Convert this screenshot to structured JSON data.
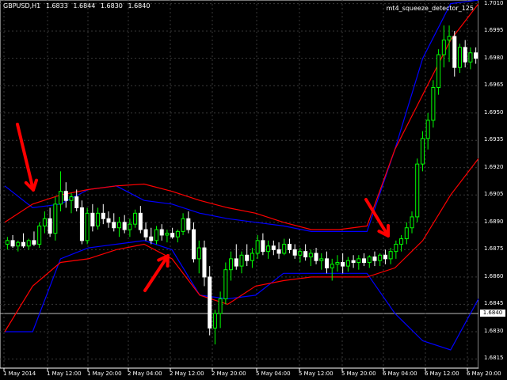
{
  "header": {
    "symbol": "GBPUSD,H1",
    "open": "1.6833",
    "high": "1.6844",
    "low": "1.6830",
    "close": "1.6840"
  },
  "indicator": {
    "name": "mt4_squeeze_detector_125"
  },
  "price_axis": [
    "1.7010",
    "1.6995",
    "1.6980",
    "1.6965",
    "1.6950",
    "1.6935",
    "1.6920",
    "1.6905",
    "1.6890",
    "1.6875",
    "1.6860",
    "1.6845",
    "1.6830",
    "1.6815"
  ],
  "current_price": "1.6840",
  "time_axis": [
    "1 May 2014",
    "1 May 12:00",
    "1 May 20:00",
    "2 May 04:00",
    "2 May 12:00",
    "2 May 20:00",
    "5 May 04:00",
    "5 May 12:00",
    "5 May 20:00",
    "6 May 04:00",
    "6 May 12:00",
    "6 May 20:00"
  ],
  "colors": {
    "background": "#000000",
    "grid": "#3a3a3a",
    "bull": "#00ff00",
    "bear": "#ffffff",
    "bollinger": "#ff0000",
    "keltner": "#0000ff",
    "arrow": "#ff0000"
  },
  "chart_data": {
    "type": "candlestick",
    "symbol": "GBPUSD",
    "timeframe": "H1",
    "ylim": [
      1.681,
      1.7012
    ],
    "candles": [
      [
        1.6878,
        1.6882,
        1.6875,
        1.688
      ],
      [
        1.688,
        1.6883,
        1.6876,
        1.6877
      ],
      [
        1.6877,
        1.688,
        1.6874,
        1.6879
      ],
      [
        1.6879,
        1.6884,
        1.6876,
        1.6877
      ],
      [
        1.6877,
        1.6881,
        1.6875,
        1.688
      ],
      [
        1.688,
        1.6885,
        1.6877,
        1.6878
      ],
      [
        1.6878,
        1.689,
        1.6876,
        1.6888
      ],
      [
        1.6888,
        1.6896,
        1.6884,
        1.6892
      ],
      [
        1.6892,
        1.6898,
        1.6882,
        1.6884
      ],
      [
        1.6884,
        1.6904,
        1.688,
        1.69
      ],
      [
        1.69,
        1.6918,
        1.6896,
        1.6907
      ],
      [
        1.6907,
        1.6912,
        1.6898,
        1.6902
      ],
      [
        1.6902,
        1.6906,
        1.6895,
        1.6904
      ],
      [
        1.6904,
        1.6908,
        1.6896,
        1.6898
      ],
      [
        1.6898,
        1.6902,
        1.6878,
        1.688
      ],
      [
        1.688,
        1.6898,
        1.6878,
        1.6895
      ],
      [
        1.6895,
        1.69,
        1.6885,
        1.6888
      ],
      [
        1.6888,
        1.6898,
        1.6886,
        1.6895
      ],
      [
        1.6895,
        1.69,
        1.6889,
        1.6892
      ],
      [
        1.6892,
        1.6896,
        1.6887,
        1.689
      ],
      [
        1.689,
        1.6895,
        1.6885,
        1.6887
      ],
      [
        1.6887,
        1.6893,
        1.6882,
        1.689
      ],
      [
        1.689,
        1.6894,
        1.6884,
        1.6886
      ],
      [
        1.6886,
        1.6892,
        1.6882,
        1.6889
      ],
      [
        1.6889,
        1.6897,
        1.6887,
        1.6895
      ],
      [
        1.6895,
        1.6899,
        1.6884,
        1.6886
      ],
      [
        1.6886,
        1.689,
        1.688,
        1.6882
      ],
      [
        1.6882,
        1.6887,
        1.6878,
        1.688
      ],
      [
        1.688,
        1.6888,
        1.6878,
        1.6886
      ],
      [
        1.6886,
        1.6889,
        1.688,
        1.6883
      ],
      [
        1.6883,
        1.6886,
        1.6879,
        1.6884
      ],
      [
        1.6884,
        1.6887,
        1.6881,
        1.6882
      ],
      [
        1.6882,
        1.6886,
        1.6879,
        1.6885
      ],
      [
        1.6885,
        1.6895,
        1.6883,
        1.6892
      ],
      [
        1.6892,
        1.6896,
        1.6884,
        1.6886
      ],
      [
        1.6886,
        1.689,
        1.6868,
        1.687
      ],
      [
        1.687,
        1.688,
        1.6862,
        1.6876
      ],
      [
        1.6876,
        1.688,
        1.6855,
        1.686
      ],
      [
        1.686,
        1.6866,
        1.6828,
        1.6832
      ],
      [
        1.6832,
        1.6842,
        1.6823,
        1.684
      ],
      [
        1.684,
        1.6852,
        1.6832,
        1.6848
      ],
      [
        1.6848,
        1.6868,
        1.6845,
        1.6864
      ],
      [
        1.6864,
        1.6874,
        1.6858,
        1.687
      ],
      [
        1.687,
        1.6878,
        1.6864,
        1.6866
      ],
      [
        1.6866,
        1.6874,
        1.6862,
        1.6872
      ],
      [
        1.6872,
        1.6878,
        1.6866,
        1.6869
      ],
      [
        1.6869,
        1.6876,
        1.6865,
        1.6873
      ],
      [
        1.6873,
        1.6883,
        1.687,
        1.688
      ],
      [
        1.688,
        1.6884,
        1.6872,
        1.6874
      ],
      [
        1.6874,
        1.688,
        1.687,
        1.6877
      ],
      [
        1.6877,
        1.688,
        1.6872,
        1.6875
      ],
      [
        1.6875,
        1.6879,
        1.687,
        1.6873
      ],
      [
        1.6873,
        1.6881,
        1.6872,
        1.6878
      ],
      [
        1.6878,
        1.6881,
        1.6873,
        1.6875
      ],
      [
        1.6875,
        1.6878,
        1.687,
        1.6872
      ],
      [
        1.6872,
        1.6876,
        1.6868,
        1.6874
      ],
      [
        1.6874,
        1.6878,
        1.6869,
        1.6871
      ],
      [
        1.6871,
        1.6875,
        1.6866,
        1.6873
      ],
      [
        1.6873,
        1.6876,
        1.6867,
        1.6869
      ],
      [
        1.6869,
        1.6873,
        1.6864,
        1.687
      ],
      [
        1.687,
        1.6874,
        1.6862,
        1.6865
      ],
      [
        1.6865,
        1.687,
        1.6858,
        1.6867
      ],
      [
        1.6867,
        1.6872,
        1.6863,
        1.6868
      ],
      [
        1.6868,
        1.6873,
        1.6862,
        1.6866
      ],
      [
        1.6866,
        1.6871,
        1.6863,
        1.6869
      ],
      [
        1.6869,
        1.6872,
        1.6865,
        1.6868
      ],
      [
        1.6868,
        1.6872,
        1.6864,
        1.687
      ],
      [
        1.687,
        1.6873,
        1.6866,
        1.6868
      ],
      [
        1.6868,
        1.6872,
        1.6865,
        1.6871
      ],
      [
        1.6871,
        1.6874,
        1.6866,
        1.6869
      ],
      [
        1.6869,
        1.6873,
        1.6866,
        1.6872
      ],
      [
        1.6872,
        1.6875,
        1.6867,
        1.687
      ],
      [
        1.687,
        1.6876,
        1.6867,
        1.6874
      ],
      [
        1.6874,
        1.688,
        1.687,
        1.6878
      ],
      [
        1.6878,
        1.6883,
        1.6874,
        1.6881
      ],
      [
        1.6881,
        1.689,
        1.6878,
        1.6887
      ],
      [
        1.6887,
        1.6896,
        1.6884,
        1.6893
      ],
      [
        1.6893,
        1.6925,
        1.689,
        1.6922
      ],
      [
        1.6922,
        1.694,
        1.6918,
        1.6936
      ],
      [
        1.6936,
        1.695,
        1.693,
        1.6946
      ],
      [
        1.6946,
        1.6968,
        1.6942,
        1.6964
      ],
      [
        1.6964,
        1.6985,
        1.696,
        1.6982
      ],
      [
        1.6982,
        1.6998,
        1.6975,
        1.699
      ],
      [
        1.699,
        1.6998,
        1.6978,
        1.6992
      ],
      [
        1.6992,
        1.6995,
        1.697,
        1.6975
      ],
      [
        1.6975,
        1.6988,
        1.6972,
        1.6986
      ],
      [
        1.6986,
        1.699,
        1.6975,
        1.6978
      ],
      [
        1.6978,
        1.6986,
        1.6974,
        1.6983
      ],
      [
        1.6983,
        1.6986,
        1.6977,
        1.698
      ]
    ],
    "bollinger_upper": [
      1.689,
      1.69,
      1.6905,
      1.6908,
      1.691,
      1.6911,
      1.6907,
      1.6902,
      1.6898,
      1.6895,
      1.689,
      1.6886,
      1.6886,
      1.6888,
      1.693,
      1.696,
      1.699,
      1.701
    ],
    "bollinger_lower": [
      1.683,
      1.6855,
      1.6868,
      1.687,
      1.6875,
      1.6878,
      1.687,
      1.685,
      1.6845,
      1.6855,
      1.6858,
      1.686,
      1.686,
      1.686,
      1.6865,
      1.688,
      1.6905,
      1.6925
    ],
    "keltner_upper": [
      1.691,
      1.6898,
      1.69,
      1.6908,
      1.691,
      1.6902,
      1.69,
      1.6895,
      1.6892,
      1.689,
      1.6888,
      1.6885,
      1.6885,
      1.6885,
      1.693,
      1.698,
      1.701,
      1.7012
    ],
    "keltner_lower": [
      1.683,
      1.683,
      1.687,
      1.6876,
      1.6878,
      1.688,
      1.6875,
      1.685,
      1.6848,
      1.685,
      1.6862,
      1.6862,
      1.6862,
      1.6862,
      1.684,
      1.6825,
      1.682,
      1.6848
    ],
    "arrow_targets": [
      [
        1.691,
        1.6908
      ],
      [
        1.687,
        1.6871
      ],
      [
        1.6886,
        1.6887
      ]
    ]
  }
}
